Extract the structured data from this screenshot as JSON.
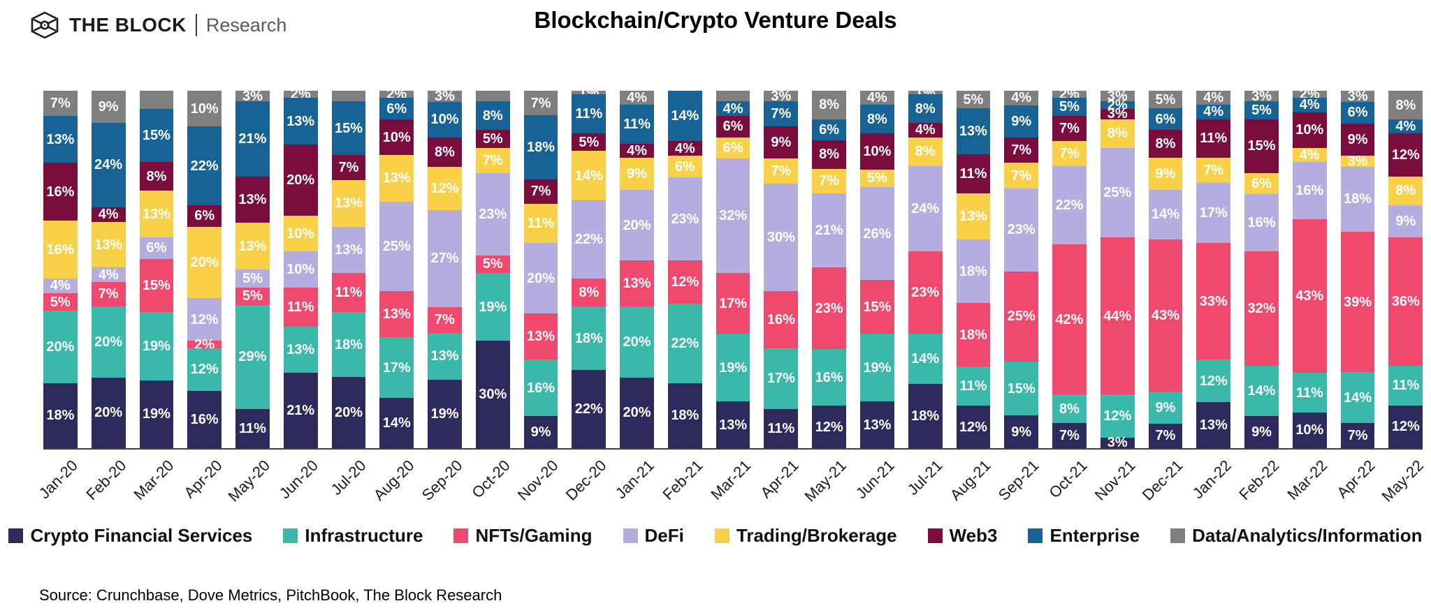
{
  "header": {
    "brand": "THE BLOCK",
    "brand_suffix": "Research",
    "title": "Blockchain/Crypto Venture Deals"
  },
  "footer": {
    "source": "Source: Crunchbase, Dove Metrics, PitchBook, The Block Research"
  },
  "colors": {
    "axis": "#414042",
    "bar_label": "#ffffff"
  },
  "chart_data": {
    "type": "bar",
    "stacked": true,
    "unit": "percent",
    "normalized": true,
    "grid": false,
    "legend_position": "bottom",
    "categories": [
      "Jan-20",
      "Feb-20",
      "Mar-20",
      "Apr-20",
      "May-20",
      "Jun-20",
      "Jul-20",
      "Aug-20",
      "Sep-20",
      "Oct-20",
      "Nov-20",
      "Dec-20",
      "Jan-21",
      "Feb-21",
      "Mar-21",
      "Apr-21",
      "May-21",
      "Jun-21",
      "Jul-21",
      "Aug-21",
      "Sep-21",
      "Oct-21",
      "Nov-21",
      "Dec-21",
      "Jan-22",
      "Feb-22",
      "Mar-22",
      "Apr-22",
      "May-22"
    ],
    "series": [
      {
        "name": "Crypto Financial Services",
        "color": "#2d2a5d",
        "values": [
          18,
          20,
          19,
          16,
          11,
          21,
          20,
          14,
          19,
          30,
          9,
          22,
          20,
          18,
          13,
          11,
          12,
          13,
          18,
          12,
          9,
          7,
          3,
          7,
          13,
          9,
          10,
          7,
          12
        ]
      },
      {
        "name": "Infrastructure",
        "color": "#3ab8a9",
        "values": [
          20,
          20,
          19,
          12,
          29,
          13,
          18,
          17,
          13,
          19,
          16,
          18,
          20,
          22,
          19,
          17,
          16,
          19,
          14,
          11,
          15,
          8,
          12,
          9,
          12,
          14,
          11,
          14,
          11
        ]
      },
      {
        "name": "NFTs/Gaming",
        "color": "#f1486e",
        "values": [
          5,
          7,
          15,
          2,
          5,
          11,
          11,
          13,
          7,
          5,
          13,
          8,
          13,
          12,
          17,
          16,
          23,
          15,
          23,
          18,
          25,
          42,
          44,
          43,
          33,
          32,
          43,
          39,
          36
        ]
      },
      {
        "name": "DeFi",
        "color": "#b5acdf",
        "values": [
          4,
          4,
          6,
          12,
          5,
          10,
          13,
          25,
          27,
          23,
          20,
          22,
          20,
          23,
          32,
          30,
          21,
          26,
          24,
          18,
          23,
          22,
          25,
          14,
          17,
          16,
          16,
          18,
          9
        ]
      },
      {
        "name": "Trading/Brokerage",
        "color": "#f9d148",
        "values": [
          16,
          13,
          13,
          20,
          13,
          10,
          13,
          13,
          12,
          7,
          11,
          14,
          9,
          6,
          6,
          7,
          7,
          5,
          8,
          13,
          7,
          7,
          8,
          9,
          7,
          6,
          4,
          3,
          8
        ]
      },
      {
        "name": "Web3",
        "color": "#7a0c3e",
        "values": [
          16,
          4,
          8,
          6,
          13,
          20,
          7,
          10,
          8,
          5,
          7,
          5,
          4,
          4,
          6,
          9,
          8,
          10,
          4,
          11,
          7,
          7,
          3,
          8,
          11,
          15,
          10,
          9,
          12
        ]
      },
      {
        "name": "Enterprise",
        "color": "#176395",
        "values": [
          13,
          24,
          15,
          22,
          21,
          13,
          15,
          6,
          10,
          8,
          18,
          11,
          11,
          14,
          4,
          7,
          6,
          8,
          8,
          13,
          9,
          5,
          2,
          6,
          4,
          5,
          4,
          6,
          4
        ]
      },
      {
        "name": "Data/Analytics/Information",
        "color": "#7f7f7f",
        "values": [
          7,
          9,
          5,
          10,
          3,
          2,
          3,
          2,
          3,
          3,
          7,
          1,
          4,
          0,
          3,
          3,
          8,
          4,
          1,
          5,
          4,
          2,
          3,
          5,
          4,
          3,
          2,
          3,
          8
        ]
      }
    ],
    "unlabeled_segments": [
      {
        "category": "Mar-20",
        "series": "Data/Analytics/Information"
      },
      {
        "category": "Jul-20",
        "series": "Data/Analytics/Information"
      },
      {
        "category": "Oct-20",
        "series": "Data/Analytics/Information"
      },
      {
        "category": "Mar-21",
        "series": "Data/Analytics/Information"
      }
    ]
  }
}
